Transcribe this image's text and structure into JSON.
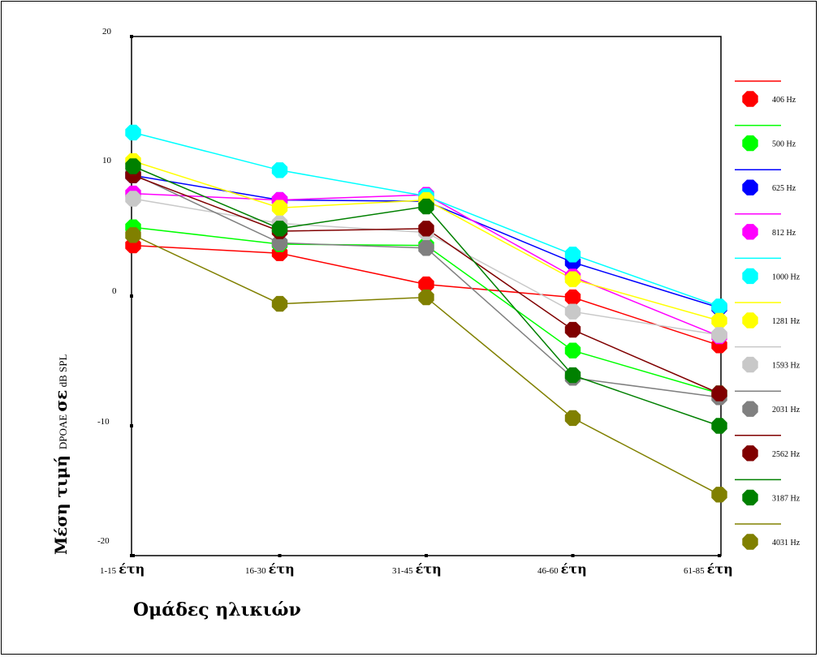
{
  "chart_data": {
    "type": "line",
    "xlabel": "Ομάδες ηλικιών",
    "ylabel_main": "Μέση τιμή ",
    "ylabel_small1": "DPOAE ",
    "ylabel_mid": "σε",
    "ylabel_small2": " dB SPL",
    "ylim": [
      -20,
      20
    ],
    "yticks": [
      "20",
      "10",
      "0",
      "-10",
      "-20"
    ],
    "categories": [
      {
        "range": "1-15",
        "unit": "έτη"
      },
      {
        "range": "16-30",
        "unit": "έτη"
      },
      {
        "range": "31-45",
        "unit": "έτη"
      },
      {
        "range": "46-60",
        "unit": "έτη"
      },
      {
        "range": "61-85",
        "unit": "έτη"
      }
    ],
    "legend_position": "right",
    "series": [
      {
        "name": "406 Hz",
        "color": "#ff0000",
        "values": [
          3.9,
          3.3,
          0.9,
          -0.1,
          -3.8
        ]
      },
      {
        "name": "500 Hz",
        "color": "#00ff00",
        "values": [
          5.3,
          4.0,
          3.9,
          -4.2,
          -7.5
        ]
      },
      {
        "name": "625 Hz",
        "color": "#0000ff",
        "values": [
          9.3,
          7.4,
          7.3,
          2.6,
          -0.9
        ]
      },
      {
        "name": "812 Hz",
        "color": "#ff00ff",
        "values": [
          7.9,
          7.4,
          7.8,
          1.5,
          -3.1
        ]
      },
      {
        "name": "1000 Hz",
        "color": "#00ffff",
        "values": [
          12.6,
          9.7,
          7.7,
          3.2,
          -0.8
        ]
      },
      {
        "name": "1281 Hz",
        "color": "#ffff00",
        "values": [
          10.4,
          6.8,
          7.4,
          1.3,
          -1.9
        ]
      },
      {
        "name": "1593 Hz",
        "color": "#c8c8c8",
        "values": [
          7.5,
          5.6,
          4.9,
          -1.2,
          -3.0
        ]
      },
      {
        "name": "2031 Hz",
        "color": "#808080",
        "values": [
          9.4,
          4.1,
          3.7,
          -6.3,
          -7.8
        ]
      },
      {
        "name": "2562 Hz",
        "color": "#800000",
        "values": [
          9.3,
          5.0,
          5.2,
          -2.6,
          -7.5
        ]
      },
      {
        "name": "3187 Hz",
        "color": "#008000",
        "values": [
          10.0,
          5.2,
          6.9,
          -6.1,
          -10.0
        ]
      },
      {
        "name": "4031 Hz",
        "color": "#808000",
        "values": [
          4.7,
          -0.6,
          -0.1,
          -9.4,
          -15.3
        ]
      }
    ]
  }
}
